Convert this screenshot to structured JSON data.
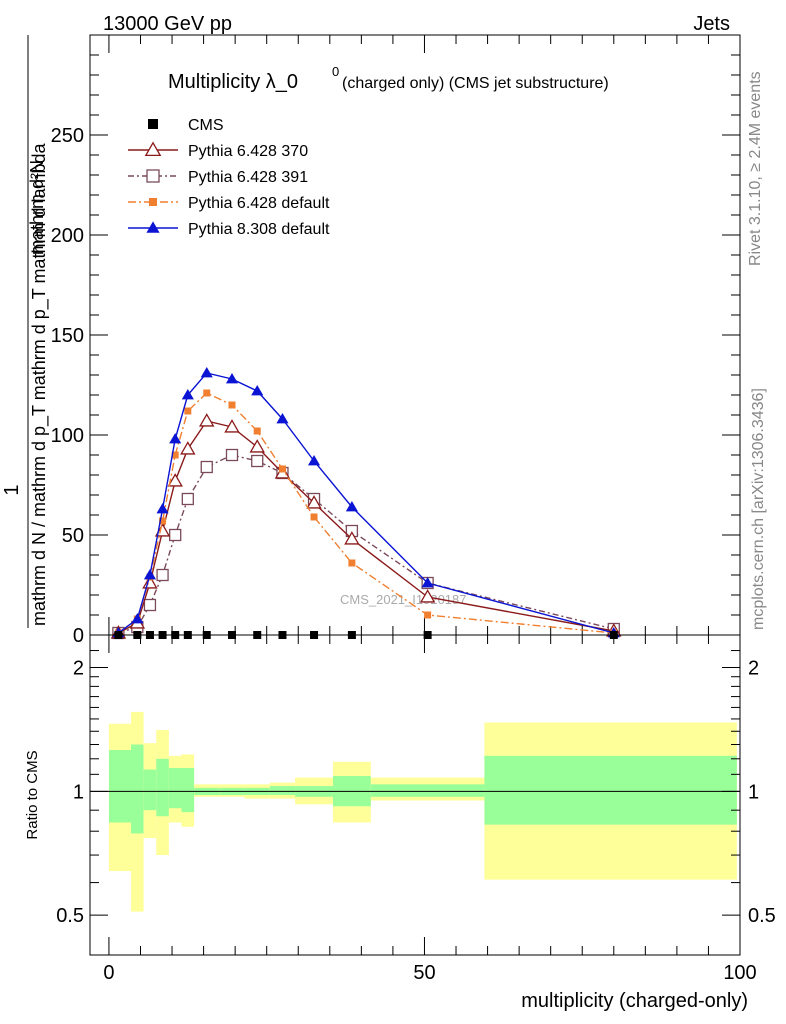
{
  "header": {
    "left": "13000 GeV pp",
    "right": "Jets"
  },
  "side": {
    "rivet": "Rivet 3.1.10, ≥ 2.4M events",
    "mcplots": "mcplots.cern.ch [arXiv:1306.3436]"
  },
  "watermark": "CMS_2021_I1920187",
  "colors": {
    "cms": "#000000",
    "p370": "#8b1a1a",
    "p391": "#7a4a5a",
    "p6def": "#f08030",
    "p8": "#0a14d2",
    "band_stat": "#99ff99",
    "band_tot": "#ffff99"
  },
  "chart_data": [
    {
      "type": "line",
      "title": "Multiplicity λ_0^0 (charged only) (CMS jet substructure)",
      "title_main": "Multiplicity λ_0",
      "title_sup": "0",
      "title_small": "(charged only) (CMS jet substructure)",
      "ylabel_num": "1",
      "ylabel_den": "mathrm d N / mathrm d p_T mathrm d p_T mathrm d lambda",
      "ylabel_right": "mathrm d²N",
      "ylim": [
        0,
        300
      ],
      "xlim": [
        -3,
        100
      ],
      "yticks": [
        0,
        50,
        100,
        150,
        200,
        250
      ],
      "legend": {
        "position": "top-left",
        "entries": [
          "CMS",
          "Pythia 6.428 370",
          "Pythia 6.428 391",
          "Pythia 6.428 default",
          "Pythia 8.308 default"
        ]
      },
      "series": [
        {
          "name": "CMS",
          "x": [
            1.5,
            4.5,
            6.5,
            8.5,
            10.5,
            12.5,
            15.5,
            19.5,
            23.5,
            27.5,
            32.5,
            38.5,
            50.5,
            80
          ],
          "values": [
            0,
            0,
            0,
            0,
            0,
            0,
            0,
            0,
            0,
            0,
            0,
            0,
            0,
            0
          ]
        },
        {
          "name": "Pythia 6.428 370",
          "x": [
            1.5,
            4.5,
            6.5,
            8.5,
            10.5,
            12.5,
            15.5,
            19.5,
            23.5,
            27.5,
            32.5,
            38.5,
            50.5,
            80
          ],
          "values": [
            1,
            6,
            26,
            52,
            77,
            93,
            107,
            104,
            94,
            81,
            66,
            48,
            19,
            2
          ]
        },
        {
          "name": "Pythia 6.428 391",
          "x": [
            1.5,
            4.5,
            6.5,
            8.5,
            10.5,
            12.5,
            15.5,
            19.5,
            23.5,
            27.5,
            32.5,
            38.5,
            50.5,
            80
          ],
          "values": [
            1,
            4,
            15,
            30,
            50,
            68,
            84,
            90,
            87,
            81,
            68,
            52,
            26,
            3
          ]
        },
        {
          "name": "Pythia 6.428 default",
          "x": [
            1.5,
            4.5,
            6.5,
            8.5,
            10.5,
            12.5,
            15.5,
            19.5,
            23.5,
            27.5,
            32.5,
            38.5,
            50.5,
            80
          ],
          "values": [
            1,
            8,
            29,
            57,
            90,
            112,
            121,
            115,
            102,
            83,
            59,
            36,
            10,
            1
          ]
        },
        {
          "name": "Pythia 8.308 default",
          "x": [
            1.5,
            4.5,
            6.5,
            8.5,
            10.5,
            12.5,
            15.5,
            19.5,
            23.5,
            27.5,
            32.5,
            38.5,
            50.5,
            80
          ],
          "values": [
            1,
            8,
            30,
            63,
            98,
            120,
            131,
            128,
            122,
            108,
            87,
            64,
            26,
            1
          ]
        }
      ]
    },
    {
      "type": "area",
      "ylabel": "Ratio to CMS",
      "xlabel": "multiplicity (charged-only)",
      "ylim": [
        0.4,
        2.4
      ],
      "yscale": "log",
      "yticks": [
        0.5,
        1,
        2
      ],
      "xticks": [
        0,
        50,
        100
      ],
      "xlim": [
        -3,
        100
      ],
      "bins": [
        {
          "lo": 0,
          "hi": 3.5,
          "stat_lo": 0.84,
          "stat_hi": 1.26,
          "tot_lo": 0.64,
          "tot_hi": 1.46
        },
        {
          "lo": 3.5,
          "hi": 5.5,
          "stat_lo": 0.79,
          "stat_hi": 1.3,
          "tot_lo": 0.51,
          "tot_hi": 1.56
        },
        {
          "lo": 5.5,
          "hi": 7.5,
          "stat_lo": 0.9,
          "stat_hi": 1.13,
          "tot_lo": 0.77,
          "tot_hi": 1.31
        },
        {
          "lo": 7.5,
          "hi": 9.5,
          "stat_lo": 0.87,
          "stat_hi": 1.2,
          "tot_lo": 0.7,
          "tot_hi": 1.41
        },
        {
          "lo": 9.5,
          "hi": 11.5,
          "stat_lo": 0.91,
          "stat_hi": 1.14,
          "tot_lo": 0.84,
          "tot_hi": 1.22
        },
        {
          "lo": 11.5,
          "hi": 13.5,
          "stat_lo": 0.89,
          "stat_hi": 1.14,
          "tot_lo": 0.82,
          "tot_hi": 1.23
        },
        {
          "lo": 13.5,
          "hi": 17.5,
          "stat_lo": 0.98,
          "stat_hi": 1.02,
          "tot_lo": 0.97,
          "tot_hi": 1.04
        },
        {
          "lo": 17.5,
          "hi": 21.5,
          "stat_lo": 0.98,
          "stat_hi": 1.02,
          "tot_lo": 0.97,
          "tot_hi": 1.04
        },
        {
          "lo": 21.5,
          "hi": 25.5,
          "stat_lo": 0.98,
          "stat_hi": 1.02,
          "tot_lo": 0.96,
          "tot_hi": 1.04
        },
        {
          "lo": 25.5,
          "hi": 29.5,
          "stat_lo": 0.98,
          "stat_hi": 1.03,
          "tot_lo": 0.96,
          "tot_hi": 1.05
        },
        {
          "lo": 29.5,
          "hi": 35.5,
          "stat_lo": 0.97,
          "stat_hi": 1.03,
          "tot_lo": 0.93,
          "tot_hi": 1.08
        },
        {
          "lo": 35.5,
          "hi": 41.5,
          "stat_lo": 0.92,
          "stat_hi": 1.09,
          "tot_lo": 0.84,
          "tot_hi": 1.18
        },
        {
          "lo": 41.5,
          "hi": 59.5,
          "stat_lo": 0.97,
          "stat_hi": 1.04,
          "tot_lo": 0.95,
          "tot_hi": 1.08
        },
        {
          "lo": 59.5,
          "hi": 99.5,
          "stat_lo": 0.83,
          "stat_hi": 1.22,
          "tot_lo": 0.61,
          "tot_hi": 1.47
        }
      ]
    }
  ]
}
